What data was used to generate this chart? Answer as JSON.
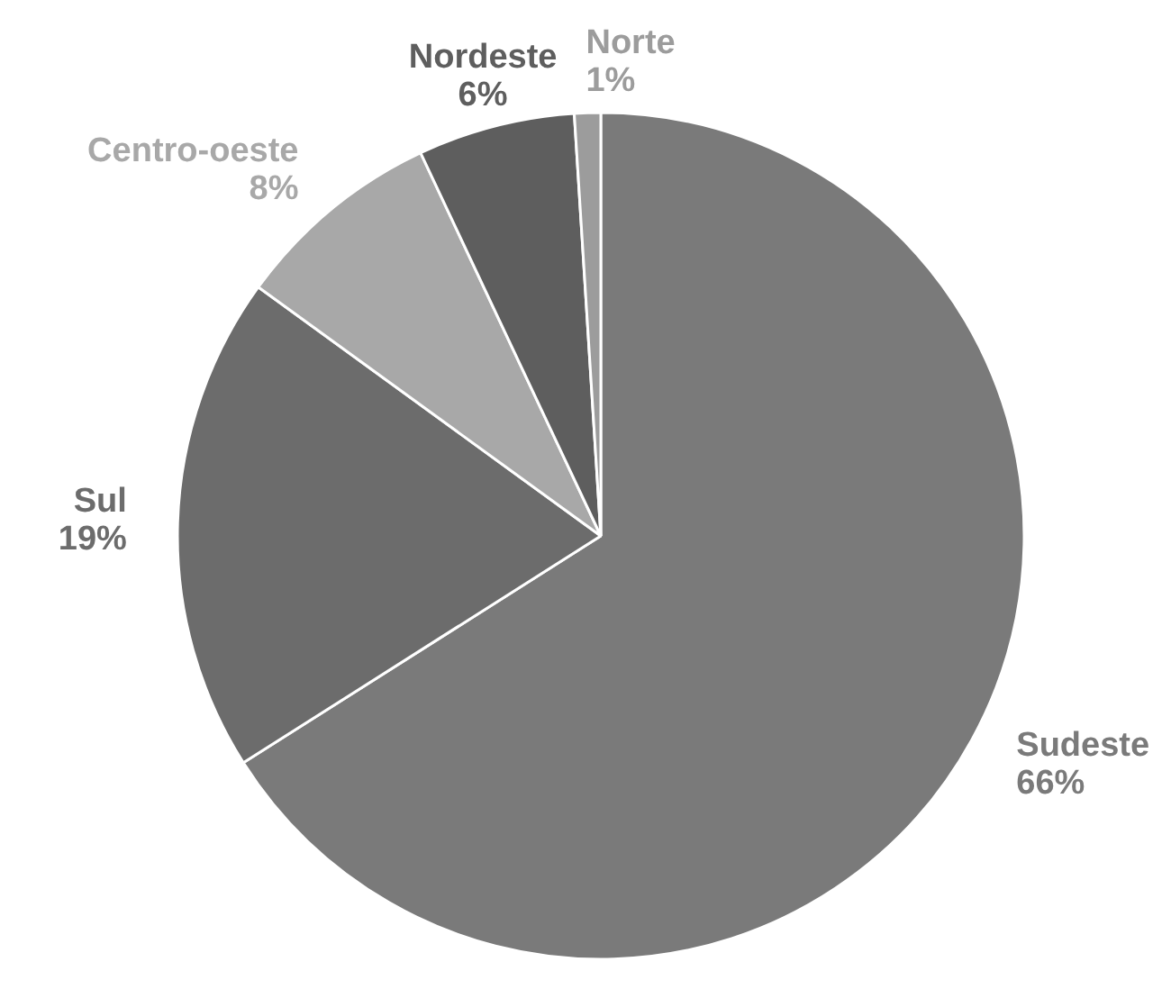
{
  "chart_data": {
    "type": "pie",
    "categories": [
      "Sudeste",
      "Sul",
      "Centro-oeste",
      "Nordeste",
      "Norte"
    ],
    "values": [
      66,
      19,
      8,
      6,
      1
    ],
    "colors": [
      "#7a7a7a",
      "#6c6c6c",
      "#a8a8a8",
      "#5e5e5e",
      "#9c9c9c"
    ],
    "value_labels": [
      "66%",
      "19%",
      "8%",
      "6%",
      "1%"
    ]
  }
}
